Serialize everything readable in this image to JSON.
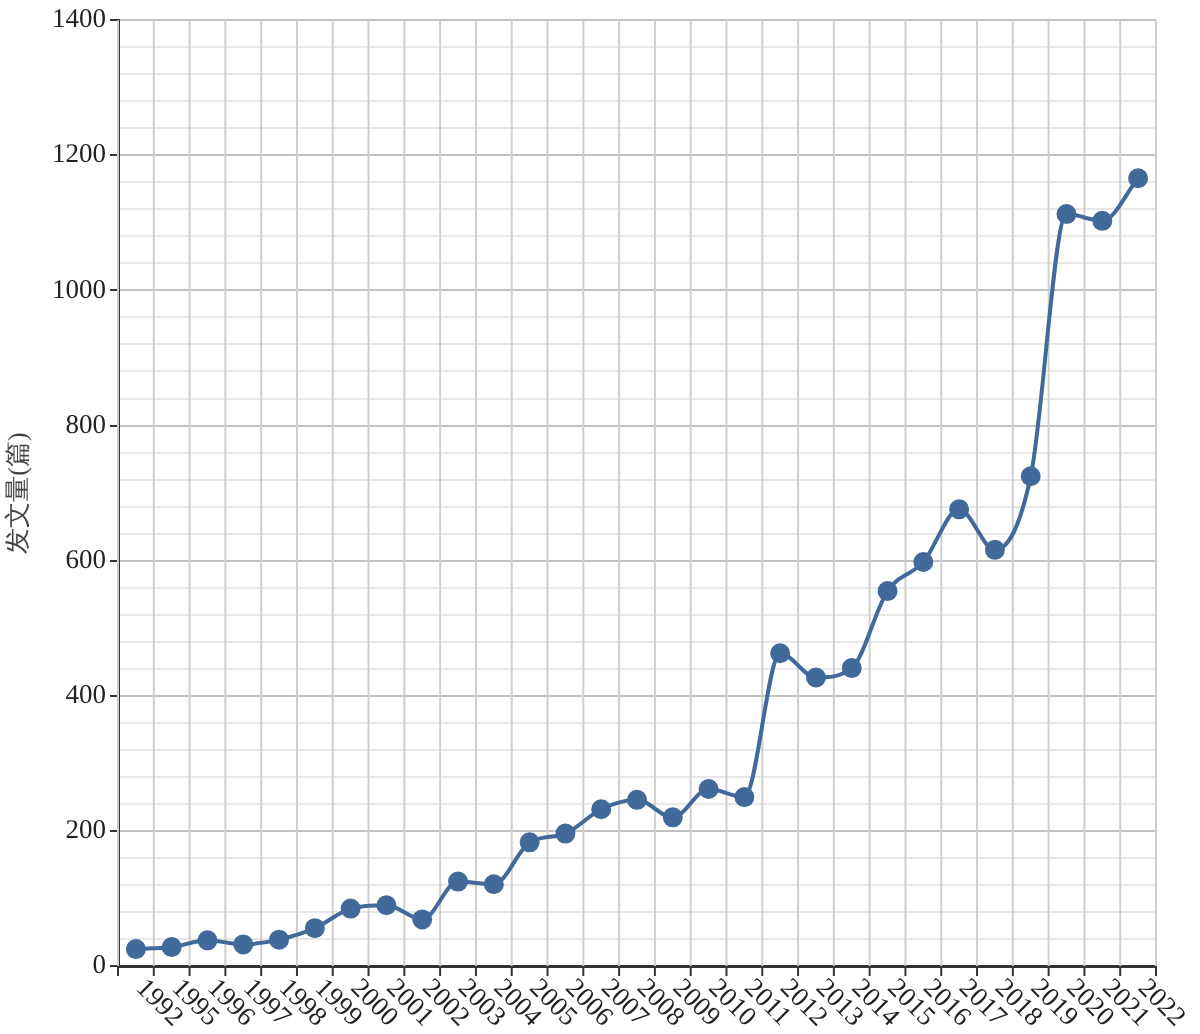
{
  "chart_data": {
    "type": "line",
    "ylabel": "发文量(篇)",
    "categories": [
      "1992",
      "1995",
      "1996",
      "1997",
      "1998",
      "1999",
      "2000",
      "2001",
      "2002",
      "2003",
      "2004",
      "2005",
      "2006",
      "2007",
      "2008",
      "2009",
      "2010",
      "2011",
      "2012",
      "2013",
      "2014",
      "2015",
      "2016",
      "2017",
      "2018",
      "2019",
      "2020",
      "2021",
      "2022"
    ],
    "series": [
      {
        "color": "#41699a",
        "values": [
          25,
          28,
          38,
          32,
          39,
          56,
          85,
          90,
          69,
          125,
          121,
          183,
          196,
          232,
          246,
          220,
          262,
          250,
          463,
          427,
          441,
          555,
          598,
          676,
          616,
          725,
          1113,
          1103,
          1166
        ]
      }
    ],
    "ylim": [
      0,
      1400
    ],
    "yticks": [
      0,
      {
        "value": 40,
        "label": null
      },
      {
        "value": 80,
        "label": null
      },
      {
        "value": 120,
        "label": null
      },
      {
        "value": 160,
        "label": null
      },
      200,
      {
        "value": 240,
        "label": null
      },
      {
        "value": 280,
        "label": null
      },
      {
        "value": 320,
        "label": null
      },
      {
        "value": 360,
        "label": null
      },
      400,
      {
        "value": 440,
        "label": null
      },
      {
        "value": 480,
        "label": null
      },
      {
        "value": 520,
        "label": null
      },
      {
        "value": 560,
        "label": null
      },
      600,
      {
        "value": 640,
        "label": null
      },
      {
        "value": 680,
        "label": null
      },
      {
        "value": 720,
        "label": null
      },
      {
        "value": 760,
        "label": null
      },
      800,
      {
        "value": 840,
        "label": null
      },
      {
        "value": 880,
        "label": null
      },
      {
        "value": 920,
        "label": null
      },
      {
        "value": 960,
        "label": null
      },
      1000,
      {
        "value": 1040,
        "label": null
      },
      {
        "value": 1080,
        "label": null
      },
      {
        "value": 1120,
        "label": null
      },
      {
        "value": 1160,
        "label": null
      },
      1200,
      {
        "value": 1240,
        "label": null
      },
      {
        "value": 1280,
        "label": null
      },
      {
        "value": 1320,
        "label": null
      },
      {
        "value": 1360,
        "label": null
      },
      1400
    ],
    "grid": true,
    "marker": "circle",
    "line_style": "solid"
  }
}
